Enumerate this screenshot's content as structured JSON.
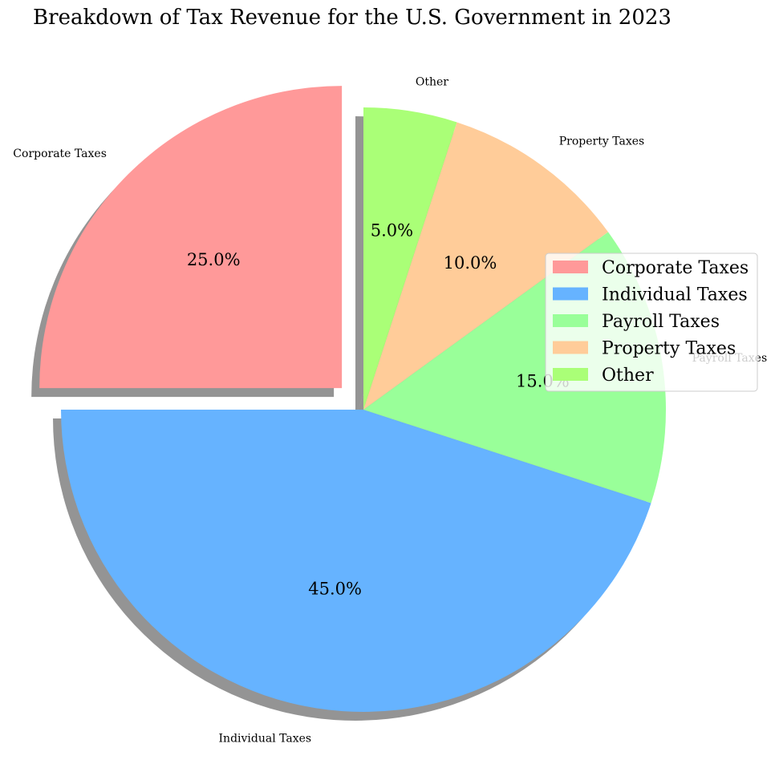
{
  "chart_data": {
    "type": "pie",
    "title": "Breakdown of Tax Revenue for the U.S. Government in 2023",
    "slices": [
      {
        "label": "Corporate Taxes",
        "value": 25.0,
        "pct_label": "25.0%",
        "color": "#ff9999",
        "exploded": true
      },
      {
        "label": "Individual Taxes",
        "value": 45.0,
        "pct_label": "45.0%",
        "color": "#66b3ff",
        "exploded": false
      },
      {
        "label": "Payroll Taxes",
        "value": 15.0,
        "pct_label": "15.0%",
        "color": "#99ff99",
        "exploded": false
      },
      {
        "label": "Property Taxes",
        "value": 10.0,
        "pct_label": "10.0%",
        "color": "#ffcc99",
        "exploded": false
      },
      {
        "label": "Other",
        "value": 5.0,
        "pct_label": "5.0%",
        "color": "#aaff77",
        "exploded": false
      }
    ],
    "start_angle": 90,
    "direction": "counterclockwise",
    "shadow": true,
    "legend": {
      "placement": "right",
      "entries": [
        "Corporate Taxes",
        "Individual Taxes",
        "Payroll Taxes",
        "Property Taxes",
        "Other"
      ]
    }
  }
}
